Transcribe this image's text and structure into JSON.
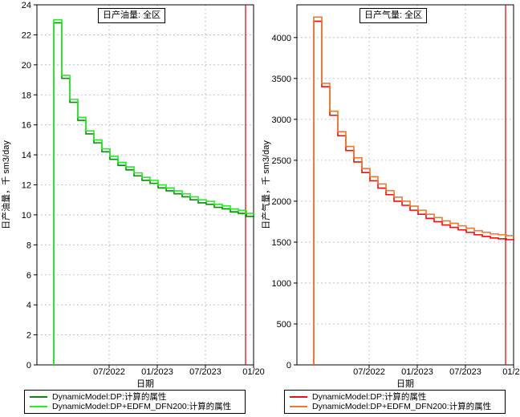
{
  "chart_data": [
    {
      "type": "line",
      "title": "日产油量: 全区",
      "xlabel": "日期",
      "ylabel": "日产油量，千 sm3/day",
      "x_ticks": [
        "07/2022",
        "01/2023",
        "07/2023",
        "01/20"
      ],
      "y_ticks": [
        0,
        2,
        4,
        6,
        8,
        10,
        12,
        14,
        16,
        18,
        20,
        22,
        24
      ],
      "xlim": [
        "10/2021",
        "01/2024"
      ],
      "ylim": [
        0,
        24
      ],
      "grid": true,
      "current_date_line": "12/2023",
      "x": [
        "11/2021",
        "11/2021",
        "12/2021",
        "01/2022",
        "02/2022",
        "03/2022",
        "04/2022",
        "05/2022",
        "06/2022",
        "07/2022",
        "08/2022",
        "09/2022",
        "10/2022",
        "11/2022",
        "12/2022",
        "01/2023",
        "02/2023",
        "03/2023",
        "04/2023",
        "05/2023",
        "06/2023",
        "07/2023",
        "08/2023",
        "09/2023",
        "10/2023",
        "11/2023",
        "12/2023"
      ],
      "series": [
        {
          "name": "DynamicModel:DP:计算的属性",
          "color": "#0a8a0a",
          "values": [
            0,
            22.8,
            19.1,
            17.5,
            16.3,
            15.4,
            14.8,
            14.2,
            13.7,
            13.3,
            13.0,
            12.6,
            12.3,
            12.1,
            11.8,
            11.6,
            11.4,
            11.2,
            11.0,
            10.8,
            10.7,
            10.5,
            10.4,
            10.2,
            10.1,
            9.9,
            9.9
          ]
        },
        {
          "name": "DynamicModel:DP+EDFM_DFN200:计算的属性",
          "color": "#22ee22",
          "values": [
            0,
            23.0,
            19.3,
            17.7,
            16.5,
            15.6,
            15.0,
            14.4,
            13.9,
            13.5,
            13.2,
            12.8,
            12.5,
            12.3,
            12.0,
            11.8,
            11.6,
            11.4,
            11.2,
            11.0,
            10.9,
            10.7,
            10.6,
            10.4,
            10.3,
            10.1,
            10.1
          ]
        }
      ]
    },
    {
      "type": "line",
      "title": "日产气量: 全区",
      "xlabel": "日期",
      "ylabel": "日产气量，千 sm3/day",
      "x_ticks": [
        "07/2022",
        "01/2023",
        "07/2023",
        "01/20"
      ],
      "y_ticks": [
        0,
        500,
        1000,
        1500,
        2000,
        2500,
        3000,
        3500,
        4000
      ],
      "xlim": [
        "10/2021",
        "01/2024"
      ],
      "ylim": [
        0,
        4400
      ],
      "grid": true,
      "current_date_line": "12/2023",
      "x": [
        "11/2021",
        "11/2021",
        "12/2021",
        "01/2022",
        "02/2022",
        "03/2022",
        "04/2022",
        "05/2022",
        "06/2022",
        "07/2022",
        "08/2022",
        "09/2022",
        "10/2022",
        "11/2022",
        "12/2022",
        "01/2023",
        "02/2023",
        "03/2023",
        "04/2023",
        "05/2023",
        "06/2023",
        "07/2023",
        "08/2023",
        "09/2023",
        "10/2023",
        "11/2023",
        "12/2023"
      ],
      "series": [
        {
          "name": "DynamicModel:DP:计算的属性",
          "color": "#e81010",
          "values": [
            0,
            4200,
            3400,
            3050,
            2800,
            2620,
            2480,
            2350,
            2250,
            2160,
            2080,
            2000,
            1950,
            1890,
            1840,
            1790,
            1750,
            1710,
            1680,
            1650,
            1620,
            1590,
            1570,
            1550,
            1540,
            1530,
            1530
          ]
        },
        {
          "name": "DynamicModel:DP+EDFM_DFN200:计算的属性",
          "color": "#f07a2a",
          "values": [
            0,
            4250,
            3440,
            3100,
            2850,
            2670,
            2530,
            2400,
            2300,
            2210,
            2130,
            2050,
            2000,
            1940,
            1890,
            1840,
            1800,
            1760,
            1730,
            1700,
            1670,
            1640,
            1620,
            1600,
            1590,
            1580,
            1580
          ]
        }
      ]
    }
  ]
}
